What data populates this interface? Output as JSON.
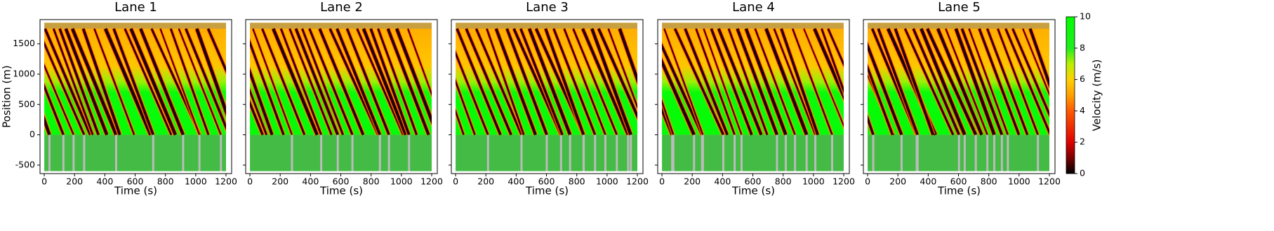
{
  "chart_data": [
    {
      "type": "heatmap",
      "title": "Lane 1",
      "xlabel": "Time (s)",
      "ylabel": "Position (m)",
      "xlim": [
        -28,
        1237
      ],
      "xticks": [
        0,
        200,
        400,
        600,
        800,
        1000,
        1200
      ],
      "ylim": [
        -640,
        1900
      ],
      "yticks": [
        -500,
        0,
        500,
        1000,
        1500
      ],
      "show_ytick_labels": true
    },
    {
      "type": "heatmap",
      "title": "Lane 2",
      "xlabel": "Time (s)",
      "xlim": [
        -28,
        1237
      ],
      "xticks": [
        0,
        200,
        400,
        600,
        800,
        1000,
        1200
      ],
      "ylim": [
        -640,
        1900
      ],
      "yticks": [
        -500,
        0,
        500,
        1000,
        1500
      ],
      "show_ytick_labels": false
    },
    {
      "type": "heatmap",
      "title": "Lane 3",
      "xlabel": "Time (s)",
      "xlim": [
        -28,
        1237
      ],
      "xticks": [
        0,
        200,
        400,
        600,
        800,
        1000,
        1200
      ],
      "ylim": [
        -640,
        1900
      ],
      "yticks": [
        -500,
        0,
        500,
        1000,
        1500
      ],
      "show_ytick_labels": false
    },
    {
      "type": "heatmap",
      "title": "Lane 4",
      "xlabel": "Time (s)",
      "xlim": [
        -28,
        1237
      ],
      "xticks": [
        0,
        200,
        400,
        600,
        800,
        1000,
        1200
      ],
      "ylim": [
        -640,
        1900
      ],
      "yticks": [
        -500,
        0,
        500,
        1000,
        1500
      ],
      "show_ytick_labels": false
    },
    {
      "type": "heatmap",
      "title": "Lane 5",
      "xlabel": "Time (s)",
      "xlim": [
        -28,
        1237
      ],
      "xticks": [
        0,
        200,
        400,
        600,
        800,
        1000,
        1200
      ],
      "ylim": [
        -640,
        1900
      ],
      "yticks": [
        -500,
        0,
        500,
        1000,
        1500
      ],
      "show_ytick_labels": false,
      "colorbar": {
        "label": "Velocity (m/s)",
        "lim": [
          0,
          10
        ],
        "ticks": [
          0,
          2,
          4,
          6,
          8,
          10
        ],
        "colormap": [
          {
            "value": 0,
            "color": "#000000"
          },
          {
            "value": 1,
            "color": "#7a0000"
          },
          {
            "value": 2,
            "color": "#e00000"
          },
          {
            "value": 4,
            "color": "#ff5a00"
          },
          {
            "value": 5,
            "color": "#ffa000"
          },
          {
            "value": 6,
            "color": "#ffd000"
          },
          {
            "value": 7,
            "color": "#b8f000"
          },
          {
            "value": 8,
            "color": "#20ee20"
          },
          {
            "value": 10,
            "color": "#00ff00"
          }
        ]
      }
    }
  ]
}
